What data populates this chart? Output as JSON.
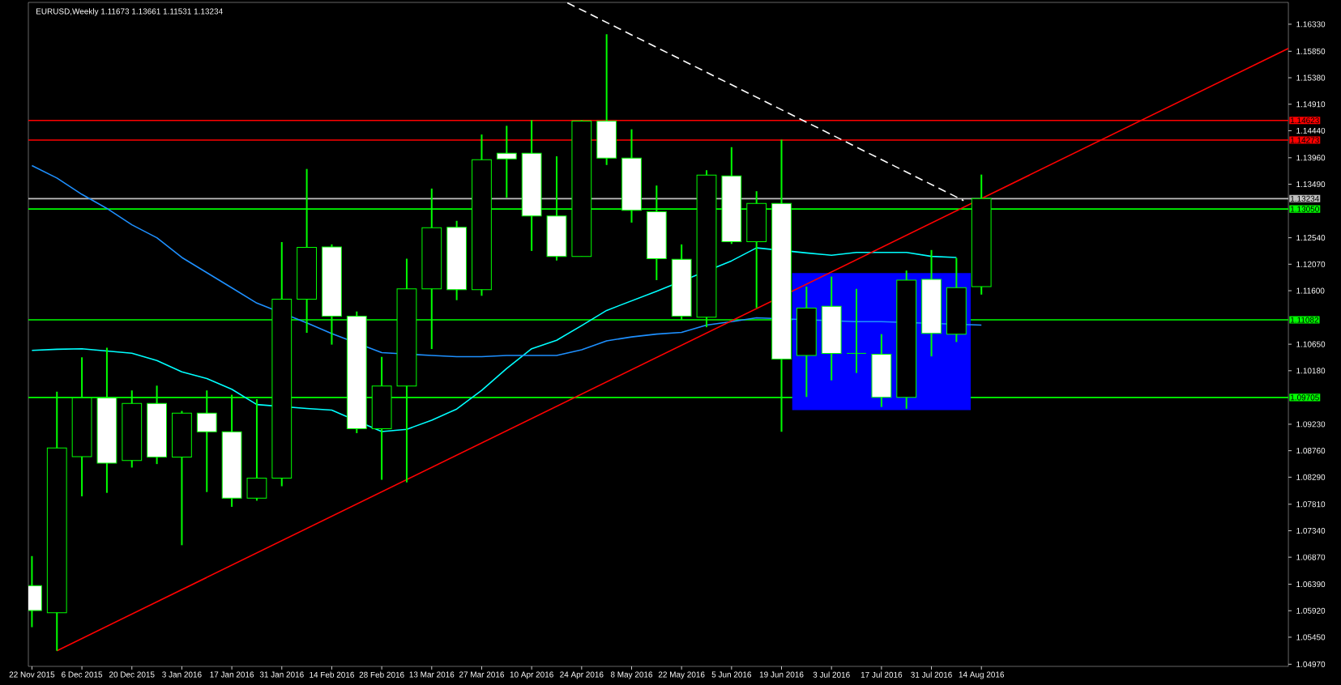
{
  "chart_data": {
    "type": "candlestick",
    "title": "EURUSD,Weekly 1.11673 1.13661 1.11531 1.13234",
    "x": [
      "2015-11-22",
      "2015-11-29",
      "2015-12-06",
      "2015-12-13",
      "2015-12-20",
      "2015-12-27",
      "2016-01-03",
      "2016-01-10",
      "2016-01-17",
      "2016-01-24",
      "2016-01-31",
      "2016-02-07",
      "2016-02-14",
      "2016-02-21",
      "2016-02-28",
      "2016-03-06",
      "2016-03-13",
      "2016-03-20",
      "2016-03-27",
      "2016-04-03",
      "2016-04-10",
      "2016-04-17",
      "2016-04-24",
      "2016-05-01",
      "2016-05-08",
      "2016-05-15",
      "2016-05-22",
      "2016-05-29",
      "2016-06-05",
      "2016-06-12",
      "2016-06-19",
      "2016-06-26",
      "2016-07-03",
      "2016-07-10",
      "2016-07-17",
      "2016-07-24",
      "2016-07-31",
      "2016-08-07",
      "2016-08-14"
    ],
    "color": "#00ff00",
    "colors": [
      "#ffffff",
      "#000000",
      "#000000",
      "#ffffff",
      "#000000",
      "#ffffff",
      "#000000",
      "#ffffff",
      "#ffffff",
      "#000000",
      "#000000",
      "#000000",
      "#ffffff",
      "#ffffff",
      "#000000",
      "#000000",
      "#000000",
      "#ffffff",
      "#000000",
      "#ffffff",
      "#ffffff",
      "#ffffff",
      "#000000",
      "#ffffff",
      "#ffffff",
      "#ffffff",
      "#ffffff",
      "#000000",
      "#ffffff",
      "#000000",
      "#ffffff",
      "#000000",
      "#ffffff",
      "#00ff00",
      "#ffffff",
      "#000000",
      "#ffffff",
      "#000000",
      "#000000"
    ],
    "ohlc": [
      [
        1.06364,
        1.0689,
        1.05628,
        1.05922
      ],
      [
        1.05884,
        1.09807,
        1.0521,
        1.08809
      ],
      [
        1.08654,
        1.10418,
        1.0795,
        1.09699
      ],
      [
        1.09699,
        1.10588,
        1.08012,
        1.08538
      ],
      [
        1.08585,
        1.0983,
        1.08461,
        1.09598
      ],
      [
        1.09598,
        1.09915,
        1.08523,
        1.08646
      ],
      [
        1.08646,
        1.09466,
        1.07083,
        1.09428
      ],
      [
        1.09428,
        1.0983,
        1.08027,
        1.09095
      ],
      [
        1.09095,
        1.09753,
        1.07764,
        1.07919
      ],
      [
        1.07919,
        1.09675,
        1.07873,
        1.08275
      ],
      [
        1.08275,
        1.12461,
        1.08128,
        1.11448
      ],
      [
        1.11448,
        1.13761,
        1.10852,
        1.12368
      ],
      [
        1.12376,
        1.12422,
        1.10643,
        1.11146
      ],
      [
        1.11146,
        1.11231,
        1.09072,
        1.09149
      ],
      [
        1.09149,
        1.10426,
        1.08244,
        1.09908
      ],
      [
        1.09908,
        1.12167,
        1.08198,
        1.11633
      ],
      [
        1.11633,
        1.13413,
        1.10565,
        1.12716
      ],
      [
        1.12724,
        1.1284,
        1.11432,
        1.11618
      ],
      [
        1.11618,
        1.14372,
        1.1151,
        1.13924
      ],
      [
        1.1404,
        1.14527,
        1.1325,
        1.13939
      ],
      [
        1.1404,
        1.14628,
        1.12306,
        1.12926
      ],
      [
        1.12926,
        1.13985,
        1.12136,
        1.12206
      ],
      [
        1.12206,
        1.14628,
        1.12206,
        1.14612
      ],
      [
        1.14612,
        1.16152,
        1.13831,
        1.13954
      ],
      [
        1.13954,
        1.14465,
        1.12809,
        1.13026
      ],
      [
        1.13003,
        1.13467,
        1.11788,
        1.12167
      ],
      [
        1.12159,
        1.12422,
        1.11084,
        1.11146
      ],
      [
        1.11131,
        1.13738,
        1.10952,
        1.13653
      ],
      [
        1.13637,
        1.14148,
        1.1243,
        1.12469
      ],
      [
        1.12469,
        1.13366,
        1.11293,
        1.1315
      ],
      [
        1.1315,
        1.1428,
        1.09095,
        1.10387
      ],
      [
        1.1045,
        1.11672,
        1.09714,
        1.11293
      ],
      [
        1.11324,
        1.1185,
        1.10008,
        1.10488
      ],
      [
        1.10488,
        1.11633,
        1.1014,
        1.10488
      ],
      [
        1.10473,
        1.10829,
        1.09536,
        1.09706
      ],
      [
        1.09706,
        1.11958,
        1.09505,
        1.11788
      ],
      [
        1.11803,
        1.12322,
        1.10434,
        1.10844
      ],
      [
        1.10829,
        1.12182,
        1.10689,
        1.11656
      ],
      [
        1.11673,
        1.13661,
        1.11531,
        1.13234
      ]
    ],
    "series": [
      {
        "type": "line",
        "color": "#0000ff",
        "x": [
          "2016-06-22",
          "2016-08-11"
        ],
        "values": [
          1.119,
          1.119
        ],
        "upper": [
          1.119,
          1.119
        ],
        "lower": [
          1.0948,
          1.0948
        ]
      },
      {
        "type": "line",
        "color": "#00ffff",
        "values": [
          1.1054,
          1.1056,
          1.1057,
          1.1053,
          1.1049,
          1.1036,
          1.1016,
          1.1004,
          1.0985,
          1.0958,
          null,
          1.0951,
          1.0948,
          null,
          1.091,
          1.0914,
          1.093,
          1.095,
          1.0983,
          1.1022,
          1.1057,
          1.1072,
          1.1098,
          1.1125,
          1.1142,
          1.1159,
          null,
          null,
          1.1213,
          1.1236,
          null,
          1.1227,
          1.1223,
          1.1228,
          1.1228,
          1.1228,
          1.1221,
          1.1219,
          null
        ]
      },
      {
        "type": "line",
        "color": "#1e90ff",
        "values": [
          1.1382,
          1.136,
          1.1331,
          1.1306,
          1.1277,
          1.1254,
          1.1219,
          1.1192,
          1.1165,
          1.1138,
          null,
          1.1103,
          1.1084,
          null,
          1.105,
          null,
          1.1045,
          1.1043,
          1.1043,
          1.1045,
          1.1045,
          1.1045,
          1.1055,
          1.1071,
          1.1078,
          1.1083,
          1.1086,
          1.1099,
          1.1105,
          1.1112,
          null,
          null,
          null,
          1.1105,
          1.1105,
          null,
          null,
          null,
          1.1099
        ]
      },
      {
        "type": "line",
        "color": "#ff0000",
        "x": [
          "2015-11-29",
          "2016-11-08"
        ],
        "values": [
          1.0521,
          1.159
        ]
      },
      {
        "type": "line",
        "color": "#ffffff",
        "line_style": "dashed",
        "x": [
          "2016-04-20",
          "2016-08-09"
        ],
        "values": [
          1.1671,
          1.132
        ]
      }
    ],
    "ref_lines": [
      {
        "axis": "y",
        "value": 1.14623,
        "label": "1.14623",
        "color": "#ff0000"
      },
      {
        "axis": "y",
        "value": 1.14273,
        "label": "1.14273",
        "color": "#ff0000"
      },
      {
        "axis": "y",
        "value": 1.13234,
        "label": "1.13234",
        "color": "#c0c0c0"
      },
      {
        "axis": "y",
        "value": 1.1305,
        "label": "1.13050",
        "color": "#00ff00"
      },
      {
        "axis": "y",
        "value": 1.11082,
        "label": "1.11082",
        "color": "#00ff00"
      },
      {
        "axis": "y",
        "value": 1.09705,
        "label": "1.09705",
        "color": "#00ff00"
      }
    ],
    "xlim": [
      "2015-11-21",
      "2016-11-08"
    ],
    "xticks": [
      {
        "value": "2015-11-22",
        "label": "22 Nov 2015"
      },
      {
        "value": "2015-12-06",
        "label": "6 Dec 2015"
      },
      {
        "value": "2015-12-20",
        "label": "20 Dec 2015"
      },
      {
        "value": "2016-01-03",
        "label": "3 Jan 2016"
      },
      {
        "value": "2016-01-17",
        "label": "17 Jan 2016"
      },
      {
        "value": "2016-01-31",
        "label": "31 Jan 2016"
      },
      {
        "value": "2016-02-14",
        "label": "14 Feb 2016"
      },
      {
        "value": "2016-02-28",
        "label": "28 Feb 2016"
      },
      {
        "value": "2016-03-13",
        "label": "13 Mar 2016"
      },
      {
        "value": "2016-03-27",
        "label": "27 Mar 2016"
      },
      {
        "value": "2016-04-10",
        "label": "10 Apr 2016"
      },
      {
        "value": "2016-04-24",
        "label": "24 Apr 2016"
      },
      {
        "value": "2016-05-08",
        "label": "8 May 2016"
      },
      {
        "value": "2016-05-22",
        "label": "22 May 2016"
      },
      {
        "value": "2016-06-05",
        "label": "5 Jun 2016"
      },
      {
        "value": "2016-06-19",
        "label": "19 Jun 2016"
      },
      {
        "value": "2016-07-03",
        "label": "3 Jul 2016"
      },
      {
        "value": "2016-07-17",
        "label": "17 Jul 2016"
      },
      {
        "value": "2016-07-31",
        "label": "31 Jul 2016"
      },
      {
        "value": "2016-08-14",
        "label": "14 Aug 2016"
      }
    ],
    "ylim": [
      1.04932,
      1.16717
    ],
    "yticks": [
      {
        "value": 1.0497,
        "label": "1.04970"
      },
      {
        "value": 1.0545,
        "label": "1.05450"
      },
      {
        "value": 1.0592,
        "label": "1.05920"
      },
      {
        "value": 1.0639,
        "label": "1.06390"
      },
      {
        "value": 1.0687,
        "label": "1.06870"
      },
      {
        "value": 1.0734,
        "label": "1.07340"
      },
      {
        "value": 1.0781,
        "label": "1.07810"
      },
      {
        "value": 1.0829,
        "label": "1.08290"
      },
      {
        "value": 1.0876,
        "label": "1.08760"
      },
      {
        "value": 1.0923,
        "label": "1.09230"
      },
      {
        "value": 1.1018,
        "label": "1.10180"
      },
      {
        "value": 1.1065,
        "label": "1.10650"
      },
      {
        "value": 1.116,
        "label": "1.11600"
      },
      {
        "value": 1.1207,
        "label": "1.12070"
      },
      {
        "value": 1.1254,
        "label": "1.12540"
      },
      {
        "value": 1.1349,
        "label": "1.13490"
      },
      {
        "value": 1.1396,
        "label": "1.13960"
      },
      {
        "value": 1.1444,
        "label": "1.14440"
      },
      {
        "value": 1.1491,
        "label": "1.14910"
      },
      {
        "value": 1.1538,
        "label": "1.15380"
      },
      {
        "value": 1.1585,
        "label": "1.15850"
      },
      {
        "value": 1.1633,
        "label": "1.16330"
      }
    ]
  }
}
